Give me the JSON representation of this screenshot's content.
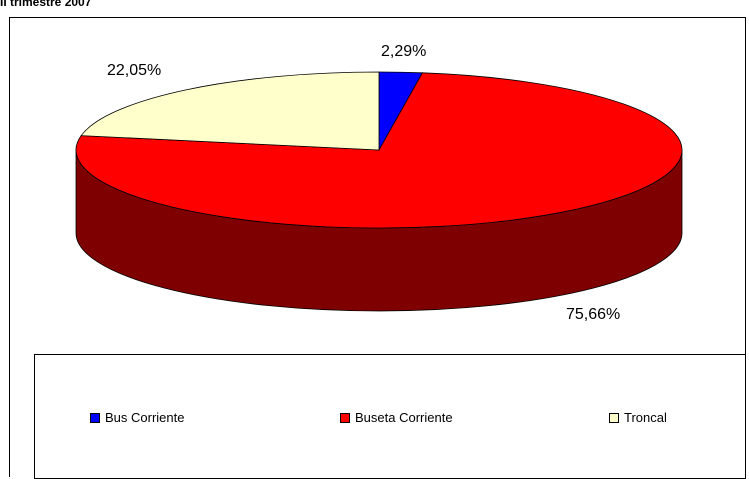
{
  "chart_data": {
    "type": "pie",
    "title": "II trimestre 2007",
    "slices": [
      {
        "label": "Bus Corriente",
        "value": 2.29,
        "display": "2,29%",
        "color": "#0000ff",
        "side_color": "#00007f"
      },
      {
        "label": "Buseta Corriente",
        "value": 75.66,
        "display": "75,66%",
        "color": "#ff0000",
        "side_color": "#7f0000"
      },
      {
        "label": "Troncal",
        "value": 22.05,
        "display": "22,05%",
        "color": "#ffffcc",
        "side_color": "#7f7f66"
      }
    ],
    "legend_position": "bottom",
    "style": "3d-pie"
  }
}
